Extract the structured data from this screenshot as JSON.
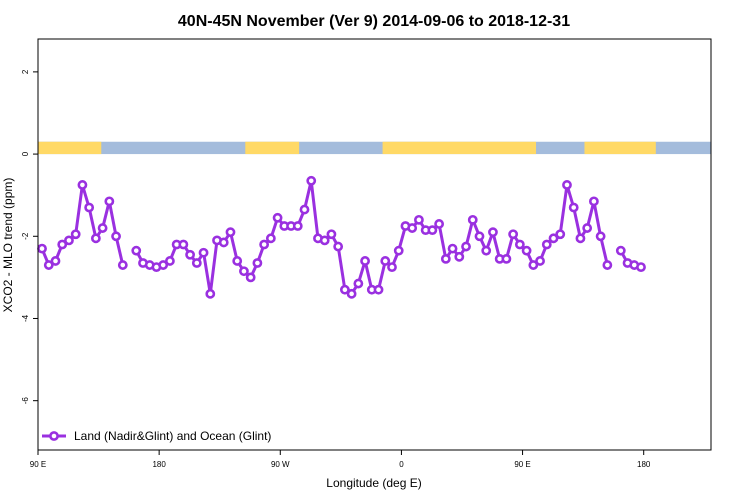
{
  "chart_data": {
    "type": "line",
    "title": "40N-45N November (Ver 9)   2014-09-06 to 2018-12-31",
    "xlabel": "Longitude (deg E)",
    "ylabel": "XCO2 - MLO trend (ppm)",
    "xlim": [
      90,
      590
    ],
    "ylim": [
      -7.2,
      2.8
    ],
    "x_ticks": [
      {
        "value": 90,
        "label": "90 E"
      },
      {
        "value": 180,
        "label": "180"
      },
      {
        "value": 270,
        "label": "90 W"
      },
      {
        "value": 360,
        "label": "0"
      },
      {
        "value": 450,
        "label": "90 E"
      },
      {
        "value": 540,
        "label": "180"
      }
    ],
    "y_ticks": [
      {
        "value": 2,
        "label": "2"
      },
      {
        "value": 0,
        "label": "0"
      },
      {
        "value": -2,
        "label": "-2"
      },
      {
        "value": -4,
        "label": "-4"
      },
      {
        "value": -6,
        "label": "-6"
      }
    ],
    "grid": false,
    "legend_position": "bottom-left",
    "surface_bar": {
      "y_range": [
        0.0,
        0.3
      ],
      "land_color": "#ffd966",
      "ocean_color": "#a4bcdc",
      "land_ranges": [
        [
          90,
          137
        ],
        [
          244,
          284
        ],
        [
          346,
          460
        ],
        [
          496,
          549
        ]
      ]
    },
    "series": [
      {
        "name": "Land (Nadir&Glint) and Ocean (Glint)",
        "color": "#9a30e0",
        "segments": [
          [
            [
              93,
              -2.3
            ],
            [
              98,
              -2.7
            ],
            [
              103,
              -2.6
            ],
            [
              108,
              -2.2
            ],
            [
              113,
              -2.1
            ],
            [
              118,
              -1.95
            ],
            [
              123,
              -0.75
            ],
            [
              128,
              -1.3
            ],
            [
              133,
              -2.05
            ],
            [
              138,
              -1.8
            ],
            [
              143,
              -1.15
            ],
            [
              148,
              -2.0
            ],
            [
              153,
              -2.7
            ]
          ],
          [
            [
              163,
              -2.35
            ],
            [
              168,
              -2.65
            ],
            [
              173,
              -2.7
            ],
            [
              178,
              -2.75
            ],
            [
              183,
              -2.7
            ],
            [
              188,
              -2.6
            ],
            [
              193,
              -2.2
            ],
            [
              198,
              -2.2
            ],
            [
              203,
              -2.45
            ],
            [
              208,
              -2.65
            ],
            [
              213,
              -2.4
            ],
            [
              218,
              -3.4
            ],
            [
              223,
              -2.1
            ],
            [
              228,
              -2.15
            ],
            [
              233,
              -1.9
            ],
            [
              238,
              -2.6
            ],
            [
              243,
              -2.85
            ],
            [
              248,
              -3.0
            ],
            [
              253,
              -2.65
            ],
            [
              258,
              -2.2
            ],
            [
              263,
              -2.05
            ],
            [
              268,
              -1.55
            ],
            [
              273,
              -1.75
            ],
            [
              278,
              -1.75
            ],
            [
              283,
              -1.75
            ],
            [
              288,
              -1.35
            ],
            [
              293,
              -0.65
            ],
            [
              298,
              -2.05
            ],
            [
              303,
              -2.1
            ],
            [
              308,
              -1.95
            ],
            [
              313,
              -2.25
            ],
            [
              318,
              -3.3
            ],
            [
              323,
              -3.4
            ],
            [
              328,
              -3.15
            ],
            [
              333,
              -2.6
            ],
            [
              338,
              -3.3
            ],
            [
              343,
              -3.3
            ],
            [
              348,
              -2.6
            ],
            [
              353,
              -2.75
            ],
            [
              358,
              -2.35
            ],
            [
              363,
              -1.75
            ],
            [
              368,
              -1.8
            ],
            [
              373,
              -1.6
            ],
            [
              378,
              -1.85
            ],
            [
              383,
              -1.85
            ],
            [
              388,
              -1.7
            ],
            [
              393,
              -2.55
            ],
            [
              398,
              -2.3
            ],
            [
              403,
              -2.5
            ],
            [
              408,
              -2.25
            ],
            [
              413,
              -1.6
            ],
            [
              418,
              -2.0
            ],
            [
              423,
              -2.35
            ],
            [
              428,
              -1.9
            ],
            [
              433,
              -2.55
            ],
            [
              438,
              -2.55
            ],
            [
              443,
              -1.95
            ],
            [
              448,
              -2.2
            ],
            [
              453,
              -2.35
            ],
            [
              458,
              -2.7
            ],
            [
              463,
              -2.6
            ],
            [
              468,
              -2.2
            ],
            [
              473,
              -2.05
            ],
            [
              478,
              -1.95
            ],
            [
              483,
              -0.75
            ],
            [
              488,
              -1.3
            ],
            [
              493,
              -2.05
            ],
            [
              498,
              -1.8
            ],
            [
              503,
              -1.15
            ],
            [
              508,
              -2.0
            ],
            [
              513,
              -2.7
            ]
          ],
          [
            [
              523,
              -2.35
            ],
            [
              528,
              -2.65
            ],
            [
              533,
              -2.7
            ],
            [
              538,
              -2.75
            ]
          ]
        ]
      }
    ]
  }
}
